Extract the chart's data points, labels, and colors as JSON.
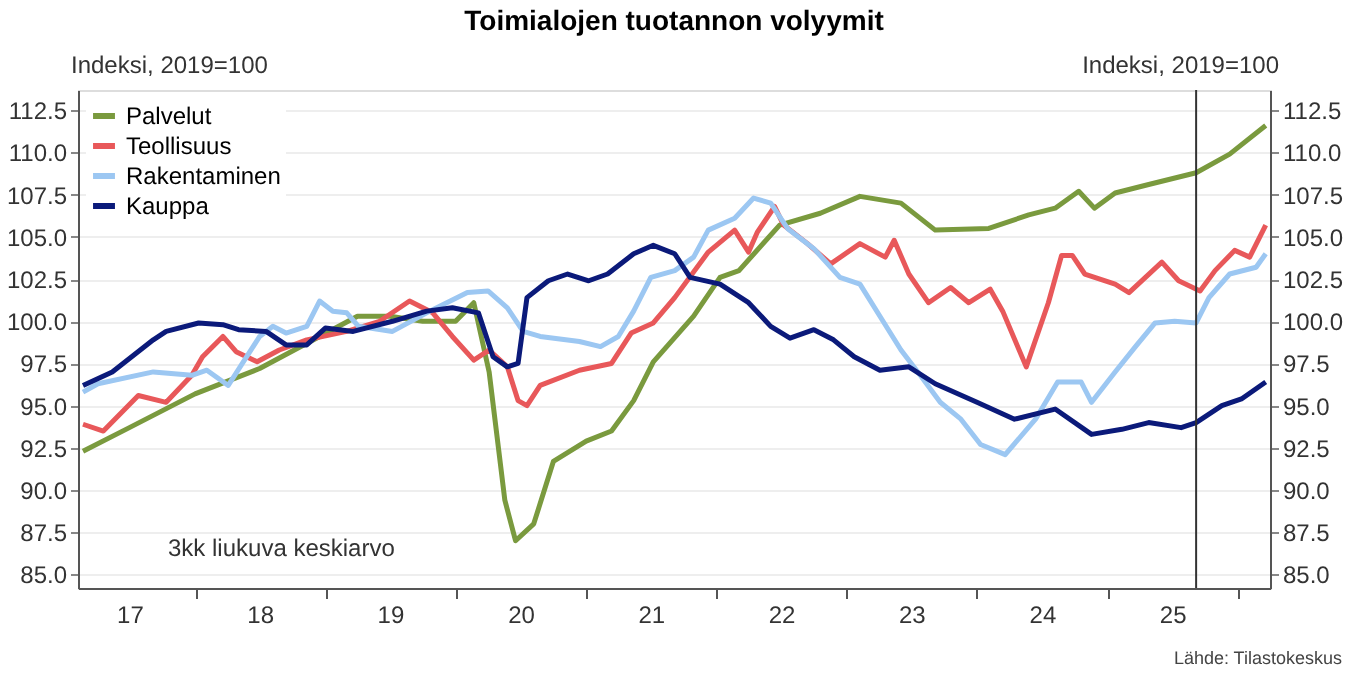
{
  "chart_data": {
    "type": "line",
    "title": "Toimialojen tuotannon volyymit",
    "ylabel": "Indeksi, 2019=100",
    "y2label": "Indeksi, 2019=100",
    "annotations": [
      "3kk liukuva keskiarvo",
      "Lähde: Tilastokeskus"
    ],
    "xlim": [
      "2017-02-07",
      "2026-04-01"
    ],
    "xticks": [
      {
        "value": "2017-07-01",
        "label": "17"
      },
      {
        "value": "2018-01-01",
        "label": null
      },
      {
        "value": "2018-07-01",
        "label": "18"
      },
      {
        "value": "2019-01-01",
        "label": null
      },
      {
        "value": "2019-07-01",
        "label": "19"
      },
      {
        "value": "2020-01-01",
        "label": null
      },
      {
        "value": "2020-07-01",
        "label": "20"
      },
      {
        "value": "2021-01-01",
        "label": null
      },
      {
        "value": "2021-07-01",
        "label": "21"
      },
      {
        "value": "2022-01-01",
        "label": null
      },
      {
        "value": "2022-07-01",
        "label": "22"
      },
      {
        "value": "2023-01-01",
        "label": null
      },
      {
        "value": "2023-07-01",
        "label": "23"
      },
      {
        "value": "2024-01-01",
        "label": null
      },
      {
        "value": "2024-07-01",
        "label": "24"
      },
      {
        "value": "2025-01-01",
        "label": null
      },
      {
        "value": "2025-07-01",
        "label": "25"
      },
      {
        "value": "2026-01-01",
        "label": null
      }
    ],
    "ylim": [
      84.2,
      113.7
    ],
    "yticks": [
      {
        "value": 85,
        "label": "85.0"
      },
      {
        "value": 87.5,
        "label": "87.5"
      },
      {
        "value": 90,
        "label": "90.0"
      },
      {
        "value": 92.5,
        "label": "92.5"
      },
      {
        "value": 95,
        "label": "95.0"
      },
      {
        "value": 97.5,
        "label": "97.5"
      },
      {
        "value": 100,
        "label": "100.0"
      },
      {
        "value": 102.5,
        "label": "102.5"
      },
      {
        "value": 105,
        "label": "105.0"
      },
      {
        "value": 107.5,
        "label": "107.5"
      },
      {
        "value": 110,
        "label": "110.0"
      },
      {
        "value": 112.5,
        "label": "112.5"
      }
    ],
    "y2lim": [
      84.2,
      113.7
    ],
    "y2ticks": [
      {
        "value": 85,
        "label": "85.0"
      },
      {
        "value": 87.5,
        "label": "87.5"
      },
      {
        "value": 90,
        "label": "90.0"
      },
      {
        "value": 92.5,
        "label": "92.5"
      },
      {
        "value": 95,
        "label": "95.0"
      },
      {
        "value": 97.5,
        "label": "97.5"
      },
      {
        "value": 100,
        "label": "100.0"
      },
      {
        "value": 102.5,
        "label": "102.5"
      },
      {
        "value": 105,
        "label": "105.0"
      },
      {
        "value": 107.5,
        "label": "107.5"
      },
      {
        "value": 110,
        "label": "110.0"
      },
      {
        "value": 112.5,
        "label": "112.5"
      }
    ],
    "grid": "y",
    "legend": "top left",
    "line_style": "solid",
    "marker": "none",
    "ref_lines": [
      {
        "axis": "x",
        "value": "2025-09-06",
        "label": null,
        "color": "#333333"
      }
    ],
    "series": [
      {
        "name": "Palvelut",
        "color": "#7a9a3e",
        "x": [
          "2017-02-21",
          "2017-07-01",
          "2018-01-01",
          "2018-07-01",
          "2018-12-16",
          "2019-04-01",
          "2019-07-01",
          "2019-10-01",
          "2020-01-01",
          "2020-02-21",
          "2020-04-04",
          "2020-05-18",
          "2020-06-17",
          "2020-08-07",
          "2020-10-01",
          "2021-01-01",
          "2021-03-13",
          "2021-05-14",
          "2021-07-08",
          "2021-10-29",
          "2022-01-11",
          "2022-03-05",
          "2022-06-27",
          "2022-10-19",
          "2023-02-07",
          "2023-06-02",
          "2023-09-06",
          "2024-02-03",
          "2024-05-25",
          "2024-08-07",
          "2024-10-12",
          "2024-11-25",
          "2025-01-22",
          "2025-04-26",
          "2025-09-06",
          "2025-12-09",
          "2026-03-20"
        ],
        "values": [
          92.3,
          93.7,
          95.7,
          97.2,
          99.1,
          100.3,
          100.3,
          100.0,
          100.0,
          101.1,
          97.0,
          89.4,
          87.0,
          88.0,
          91.7,
          92.9,
          93.5,
          95.3,
          97.6,
          100.3,
          102.6,
          103.0,
          105.7,
          106.4,
          107.4,
          107.0,
          105.4,
          105.5,
          106.3,
          106.7,
          107.7,
          106.7,
          107.6,
          108.1,
          108.8,
          109.9,
          111.6
        ]
      },
      {
        "name": "Teollisuus",
        "color": "#e8585a",
        "x": [
          "2017-02-21",
          "2017-04-19",
          "2017-07-26",
          "2017-10-12",
          "2017-12-23",
          "2018-01-22",
          "2018-03-20",
          "2018-04-26",
          "2018-06-24",
          "2018-08-25",
          "2018-11-10",
          "2019-03-02",
          "2019-06-02",
          "2019-08-25",
          "2019-10-29",
          "2019-12-23",
          "2020-02-21",
          "2020-04-04",
          "2020-05-25",
          "2020-06-24",
          "2020-07-19",
          "2020-08-25",
          "2020-12-13",
          "2021-03-13",
          "2021-05-07",
          "2021-07-08",
          "2021-09-06",
          "2021-12-09",
          "2022-02-21",
          "2022-04-01",
          "2022-04-26",
          "2022-06-13",
          "2022-07-08",
          "2022-09-13",
          "2022-11-17",
          "2023-02-07",
          "2023-04-19",
          "2023-05-14",
          "2023-06-24",
          "2023-08-18",
          "2023-10-19",
          "2023-12-09",
          "2024-02-07",
          "2024-03-13",
          "2024-05-18",
          "2024-07-19",
          "2024-08-25",
          "2024-09-24",
          "2024-10-29",
          "2025-01-22",
          "2025-03-02",
          "2025-06-02",
          "2025-07-19",
          "2025-09-17",
          "2025-10-29",
          "2025-12-23",
          "2026-02-03",
          "2026-03-20"
        ],
        "values": [
          93.9,
          93.5,
          95.6,
          95.2,
          96.8,
          97.9,
          99.1,
          98.2,
          97.6,
          98.3,
          98.9,
          99.4,
          100.0,
          101.2,
          100.5,
          99.1,
          97.7,
          98.3,
          97.3,
          95.3,
          95.0,
          96.2,
          97.1,
          97.5,
          99.3,
          99.9,
          101.4,
          104.1,
          105.4,
          104.1,
          105.3,
          106.8,
          105.7,
          104.6,
          103.4,
          104.6,
          103.8,
          104.8,
          102.8,
          101.1,
          102.0,
          101.1,
          101.9,
          100.6,
          97.3,
          101.1,
          103.9,
          103.9,
          102.8,
          102.2,
          101.7,
          103.5,
          102.4,
          101.8,
          103.0,
          104.2,
          103.8,
          105.7
        ]
      },
      {
        "name": "Rakentaminen",
        "color": "#9cc7f2",
        "x": [
          "2017-02-21",
          "2017-04-04",
          "2017-09-06",
          "2017-12-23",
          "2018-02-03",
          "2018-04-04",
          "2018-07-01",
          "2018-08-07",
          "2018-09-13",
          "2018-11-10",
          "2018-12-16",
          "2019-01-22",
          "2019-03-02",
          "2019-04-04",
          "2019-07-08",
          "2019-10-12",
          "2020-02-03",
          "2020-04-01",
          "2020-05-25",
          "2020-07-08",
          "2020-08-25",
          "2020-12-13",
          "2021-02-10",
          "2021-04-01",
          "2021-05-14",
          "2021-07-01",
          "2021-09-06",
          "2021-10-29",
          "2021-12-09",
          "2022-02-21",
          "2022-04-15",
          "2022-06-02",
          "2022-07-19",
          "2022-10-01",
          "2022-12-13",
          "2023-02-07",
          "2023-04-04",
          "2023-06-02",
          "2023-07-26",
          "2023-09-20",
          "2023-11-17",
          "2024-01-11",
          "2024-03-20",
          "2024-06-13",
          "2024-08-14",
          "2024-10-19",
          "2024-11-17",
          "2025-01-22",
          "2025-03-20",
          "2025-05-14",
          "2025-07-08",
          "2025-09-06",
          "2025-10-12",
          "2025-12-09",
          "2026-02-21",
          "2026-03-20"
        ],
        "values": [
          95.8,
          96.3,
          97.0,
          96.8,
          97.1,
          96.2,
          99.1,
          99.7,
          99.3,
          99.7,
          101.2,
          100.6,
          100.5,
          99.7,
          99.4,
          100.5,
          101.7,
          101.8,
          100.8,
          99.4,
          99.1,
          98.8,
          98.5,
          99.1,
          100.6,
          102.6,
          103.0,
          103.8,
          105.4,
          106.1,
          107.3,
          107.0,
          105.5,
          104.3,
          102.6,
          102.2,
          100.3,
          98.3,
          96.8,
          95.2,
          94.2,
          92.7,
          92.1,
          94.2,
          96.4,
          96.4,
          95.2,
          97.0,
          98.5,
          99.9,
          100.0,
          99.9,
          101.4,
          102.8,
          103.2,
          104.0
        ]
      },
      {
        "name": "Kauppa",
        "color": "#0b1a7a",
        "x": [
          "2017-02-21",
          "2017-05-14",
          "2017-09-06",
          "2017-10-12",
          "2018-01-11",
          "2018-03-20",
          "2018-05-03",
          "2018-07-19",
          "2018-09-13",
          "2018-11-10",
          "2019-01-01",
          "2019-03-20",
          "2019-07-08",
          "2019-10-12",
          "2019-12-23",
          "2020-03-05",
          "2020-04-15",
          "2020-05-25",
          "2020-06-24",
          "2020-07-19",
          "2020-09-17",
          "2020-11-10",
          "2021-01-08",
          "2021-03-02",
          "2021-05-14",
          "2021-07-08",
          "2021-09-06",
          "2021-10-19",
          "2022-01-11",
          "2022-04-01",
          "2022-06-02",
          "2022-07-26",
          "2022-10-01",
          "2022-11-25",
          "2023-01-22",
          "2023-04-04",
          "2023-06-24",
          "2023-09-06",
          "2024-01-01",
          "2024-04-15",
          "2024-08-07",
          "2024-11-17",
          "2025-02-10",
          "2025-04-26",
          "2025-07-26",
          "2025-09-06",
          "2025-11-17",
          "2026-01-11",
          "2026-03-20"
        ],
        "values": [
          96.2,
          97.0,
          98.9,
          99.4,
          99.9,
          99.8,
          99.5,
          99.4,
          98.6,
          98.6,
          99.6,
          99.4,
          100.0,
          100.6,
          100.8,
          100.5,
          97.9,
          97.3,
          97.5,
          101.4,
          102.4,
          102.8,
          102.4,
          102.8,
          104.0,
          104.5,
          104.0,
          102.6,
          102.2,
          101.1,
          99.7,
          99.0,
          99.5,
          98.9,
          97.9,
          97.1,
          97.3,
          96.3,
          95.2,
          94.2,
          94.8,
          93.3,
          93.6,
          94.0,
          93.7,
          94.0,
          95.0,
          95.4,
          96.4
        ]
      }
    ]
  }
}
